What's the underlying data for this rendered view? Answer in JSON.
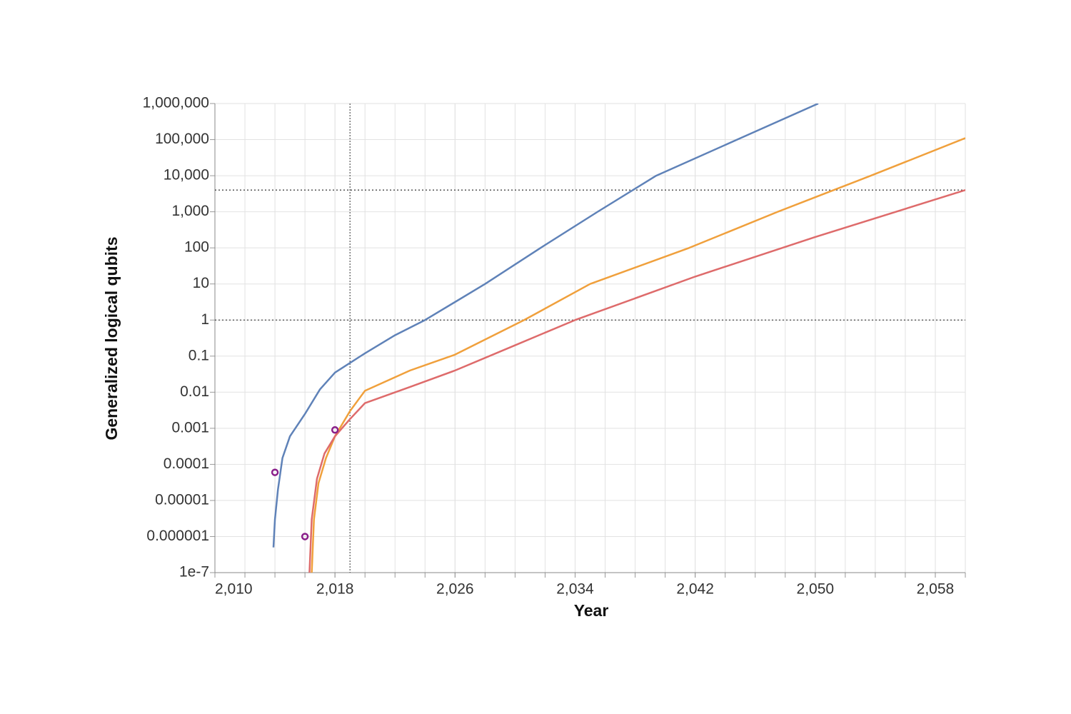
{
  "chart_data": {
    "type": "line",
    "xlabel": "Year",
    "ylabel": "Generalized logical qubits",
    "xlim": [
      2010,
      2060
    ],
    "xticks": [
      {
        "value": 2010,
        "label": "2,010"
      },
      {
        "value": 2018,
        "label": "2,018"
      },
      {
        "value": 2026,
        "label": "2,026"
      },
      {
        "value": 2034,
        "label": "2,034"
      },
      {
        "value": 2042,
        "label": "2,042"
      },
      {
        "value": 2050,
        "label": "2,050"
      },
      {
        "value": 2058,
        "label": "2,058"
      }
    ],
    "ylim": [
      1e-07,
      1000000
    ],
    "yscale": "log",
    "yticks": [
      1e-07,
      1e-06,
      1e-05,
      0.0001,
      0.001,
      0.01,
      0.1,
      1,
      10,
      100,
      {
        "value": 1000,
        "label": "1,000"
      },
      {
        "value": 10000,
        "label": "10,000"
      },
      {
        "value": 100000,
        "label": "100,000"
      },
      {
        "value": 1000000,
        "label": "1,000,000"
      }
    ],
    "grid": true,
    "reference_lines": {
      "y": [
        1,
        4000
      ],
      "x": [
        2019
      ]
    },
    "series": [
      {
        "color": "#5f82b8",
        "style": "line",
        "x": [
          2013.9,
          2014,
          2014.2,
          2014.5,
          2015,
          2016,
          2017,
          2018,
          2020,
          2022,
          2024,
          2028,
          2031.7,
          2035.5,
          2039.4,
          2044.8,
          2050.2
        ],
        "values": [
          5e-07,
          3e-06,
          2e-05,
          0.00015,
          0.0006,
          0.0025,
          0.012,
          0.035,
          0.12,
          0.38,
          1,
          10,
          100,
          1000,
          10000,
          100000,
          1000000
        ]
      },
      {
        "color": "#f0a03c",
        "style": "line",
        "x": [
          2016.45,
          2016.6,
          2016.9,
          2017.4,
          2018,
          2019,
          2020,
          2023,
          2026,
          2030.6,
          2035,
          2041.6,
          2047.5,
          2053.7,
          2060
        ],
        "values": [
          1e-07,
          3e-06,
          3e-05,
          0.00015,
          0.0006,
          0.003,
          0.011,
          0.04,
          0.11,
          1,
          10,
          100,
          1000,
          10000,
          110000
        ]
      },
      {
        "color": "#de6b6b",
        "style": "line",
        "x": [
          2016.3,
          2016.45,
          2016.8,
          2017.3,
          2018,
          2019,
          2020,
          2023,
          2026,
          2030,
          2034,
          2042,
          2050,
          2060
        ],
        "values": [
          1e-07,
          3e-06,
          4e-05,
          0.0002,
          0.0006,
          0.0018,
          0.005,
          0.014,
          0.04,
          0.2,
          1,
          16,
          200,
          4000
        ]
      },
      {
        "color": "#8a1f8a",
        "style": "points",
        "x": [
          2014,
          2016,
          2018
        ],
        "values": [
          6e-05,
          1e-06,
          0.0009
        ]
      }
    ]
  }
}
